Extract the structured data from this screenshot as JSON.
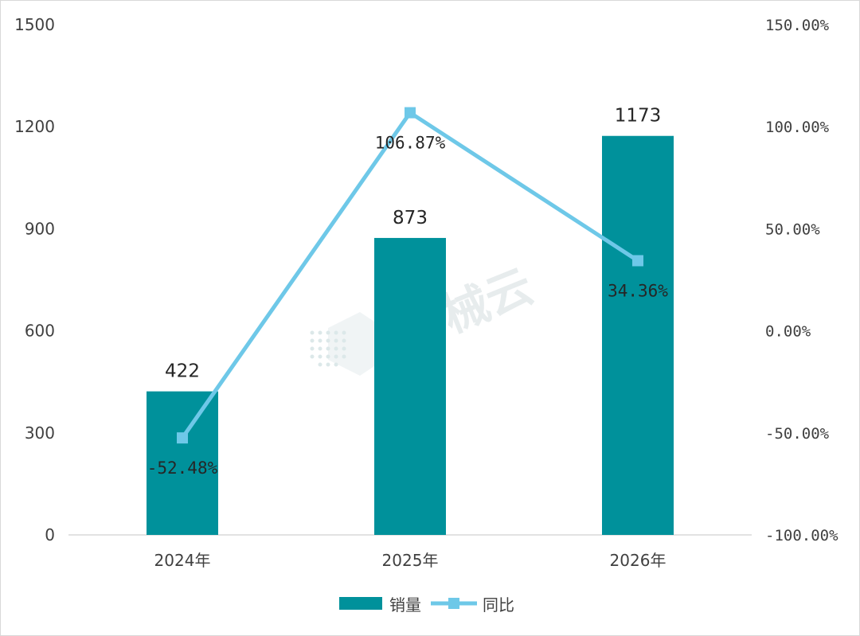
{
  "chart_data": {
    "type": "bar+line",
    "categories": [
      "2024年",
      "2025年",
      "2026年"
    ],
    "series": [
      {
        "name": "销量",
        "type": "bar",
        "axis": "left",
        "values": [
          422,
          873,
          1173
        ],
        "labels": [
          "422",
          "873",
          "1173"
        ],
        "color": "#00919b"
      },
      {
        "name": "同比",
        "type": "line",
        "axis": "right",
        "values": [
          -52.48,
          106.87,
          34.36
        ],
        "labels": [
          "-52.48%",
          "106.87%",
          "34.36%"
        ],
        "color": "#6ec8e8",
        "marker": "square"
      }
    ],
    "left_axis": {
      "ylim": [
        0,
        1500
      ],
      "ticks": [
        "0",
        "300",
        "600",
        "900",
        "1200",
        "1500"
      ]
    },
    "right_axis": {
      "ylim": [
        -100,
        150
      ],
      "ticks": [
        "-100.00%",
        "-50.00%",
        "0.00%",
        "50.00%",
        "100.00%",
        "150.00%"
      ]
    },
    "grid": false,
    "legend": {
      "position": "bottom",
      "entries": [
        "销量",
        "同比"
      ]
    },
    "watermark": "智械云"
  }
}
